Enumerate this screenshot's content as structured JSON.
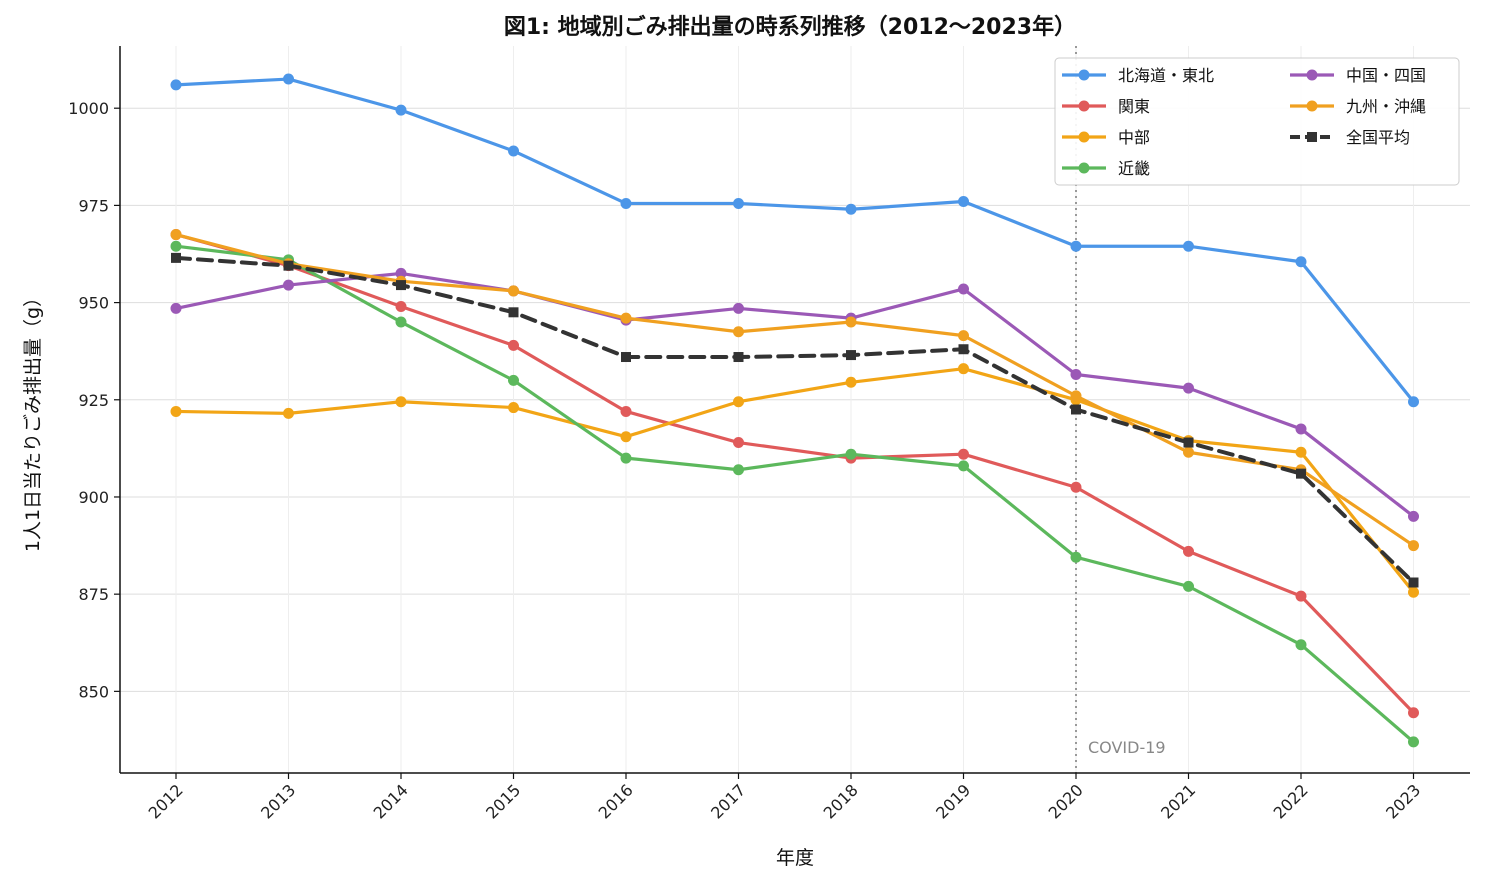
{
  "chart_data": {
    "type": "line",
    "title": "図1: 地域別ごみ排出量の時系列推移（2012〜2023年）",
    "xlabel": "年度",
    "ylabel": "1人1日当たりごみ排出量（g）",
    "x": [
      "2012",
      "2013",
      "2014",
      "2015",
      "2016",
      "2017",
      "2018",
      "2019",
      "2020",
      "2021",
      "2022",
      "2023"
    ],
    "yticks": [
      850,
      875,
      900,
      925,
      950,
      975,
      1000
    ],
    "ylim": [
      829,
      1016
    ],
    "grid": true,
    "legend_position": "top-right",
    "series": [
      {
        "name": "北海道・東北",
        "color": "#4C96E8",
        "dashed": false,
        "marker": "circle",
        "values": [
          1006,
          1007.5,
          999.5,
          989,
          975.5,
          975.5,
          974,
          976,
          964.5,
          964.5,
          960.5,
          924.5
        ]
      },
      {
        "name": "関東",
        "color": "#E05A5A",
        "dashed": false,
        "marker": "circle",
        "values": [
          967.5,
          959.5,
          949,
          939,
          922,
          914,
          910,
          911,
          902.5,
          886,
          874.5,
          844.5
        ]
      },
      {
        "name": "中部",
        "color": "#F2A516",
        "dashed": false,
        "marker": "circle",
        "values": [
          922,
          921.5,
          924.5,
          923,
          915.5,
          924.5,
          929.5,
          933,
          925,
          914.5,
          911.5,
          875.5
        ]
      },
      {
        "name": "近畿",
        "color": "#5CB85C",
        "dashed": false,
        "marker": "circle",
        "values": [
          964.5,
          961,
          945,
          930,
          910,
          907,
          911,
          908,
          884.5,
          877,
          862,
          837
        ]
      },
      {
        "name": "中国・四国",
        "color": "#9B59B6",
        "dashed": false,
        "marker": "circle",
        "values": [
          948.5,
          954.5,
          957.5,
          953,
          945.5,
          948.5,
          946,
          953.5,
          931.5,
          928,
          917.5,
          895
        ]
      },
      {
        "name": "九州・沖縄",
        "color": "#F0A020",
        "dashed": false,
        "marker": "circle",
        "values": [
          967.5,
          960,
          955.5,
          953,
          946,
          942.5,
          945,
          941.5,
          926,
          911.5,
          907,
          887.5
        ]
      },
      {
        "name": "全国平均",
        "color": "#333333",
        "dashed": true,
        "marker": "square",
        "values": [
          961.5,
          959.5,
          954.5,
          947.5,
          936,
          936,
          936.5,
          938,
          922.5,
          914,
          906,
          878
        ]
      }
    ],
    "annotations": [
      {
        "x": "2020",
        "text": "COVID-19",
        "style": "vertical-dotted-line"
      }
    ]
  }
}
